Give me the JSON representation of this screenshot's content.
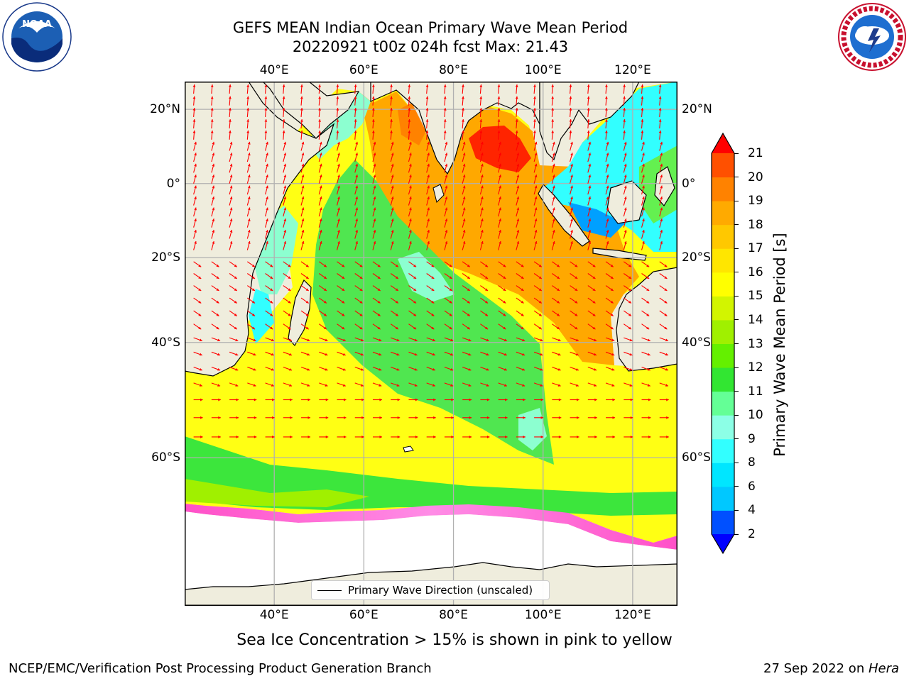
{
  "header": {
    "title_line1": "GEFS MEAN Indian Ocean Primary Wave Mean Period",
    "title_line2": "20220921 t00z 024h fcst   Max: 21.43"
  },
  "logos": {
    "left": {
      "name": "noaa-logo",
      "text": "NOAA",
      "ring_text": "NATIONAL OCEANIC AND ATMOSPHERIC ADMINISTRATION · U.S. DEPARTMENT OF COMMERCE"
    },
    "right": {
      "name": "nws-logo",
      "ring_text": "NATIONAL WEATHER SERVICE"
    }
  },
  "map": {
    "projection": "Mercator",
    "lon_range": [
      20,
      130
    ],
    "lat_range": [
      -75,
      27
    ],
    "gridlines": true,
    "lon_ticks": [
      {
        "value": 40,
        "label": "40°E"
      },
      {
        "value": 60,
        "label": "60°E"
      },
      {
        "value": 80,
        "label": "80°E"
      },
      {
        "value": 100,
        "label": "100°E"
      },
      {
        "value": 120,
        "label": "120°E"
      }
    ],
    "lat_ticks": [
      {
        "value": 20,
        "label": "20°N"
      },
      {
        "value": 0,
        "label": "0°"
      },
      {
        "value": -20,
        "label": "20°S"
      },
      {
        "value": -40,
        "label": "40°S"
      },
      {
        "value": -60,
        "label": "60°S"
      }
    ],
    "colors": {
      "land": "#efeddd",
      "ice_free_land_white": "#ffffff",
      "arrow": "#ff0000",
      "grid": "#b0b0b0",
      "coast": "#000000"
    }
  },
  "colorbar": {
    "title": "Primary Wave Mean Period [s]",
    "levels": [
      {
        "label": "2",
        "color": "#0050ff"
      },
      {
        "label": "4",
        "color": "#00c8ff"
      },
      {
        "label": "6",
        "color": "#00e6ff"
      },
      {
        "label": "8",
        "color": "#32ffff"
      },
      {
        "label": "9",
        "color": "#8cffe6"
      },
      {
        "label": "10",
        "color": "#64ff96"
      },
      {
        "label": "11",
        "color": "#32e632"
      },
      {
        "label": "12",
        "color": "#64f000"
      },
      {
        "label": "13",
        "color": "#a0f000"
      },
      {
        "label": "14",
        "color": "#d2f500"
      },
      {
        "label": "15",
        "color": "#ffff00"
      },
      {
        "label": "16",
        "color": "#ffe600"
      },
      {
        "label": "17",
        "color": "#ffc800"
      },
      {
        "label": "18",
        "color": "#ffaa00"
      },
      {
        "label": "19",
        "color": "#ff8200"
      },
      {
        "label": "20",
        "color": "#ff5000"
      },
      {
        "label": "21",
        "color": "#ff1e00"
      }
    ],
    "under_color": "#0000ff",
    "over_color": "#ff0000"
  },
  "legend": {
    "label": "Primary Wave Direction (unscaled)"
  },
  "notes": {
    "sea_ice": "Sea Ice Concentration > 15% is shown in pink to yellow"
  },
  "footer": {
    "left": "NCEP/EMC/Verification Post Processing Product Generation Branch",
    "right_prefix": "27 Sep 2022 on ",
    "right_host": "Hera"
  }
}
